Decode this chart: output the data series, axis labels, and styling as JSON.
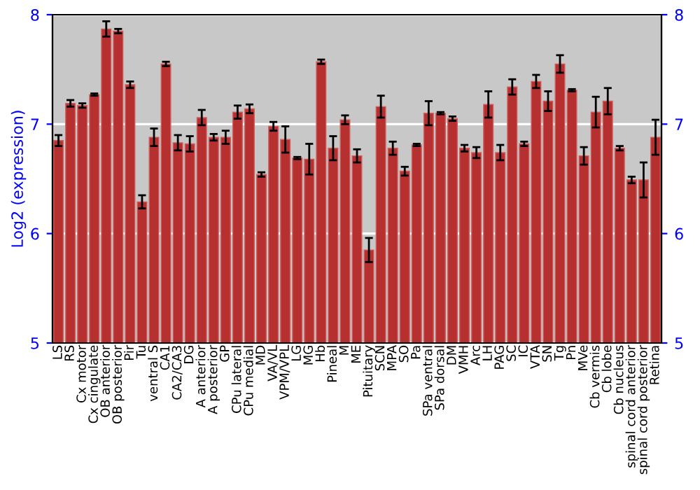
{
  "chart_data": {
    "type": "bar",
    "ylabel": "Log2 (expression)",
    "categories": [
      "LS",
      "RS",
      "Cx motor",
      "Cx cingulate",
      "OB anterior",
      "OB posterior",
      "Pir",
      "Tu",
      "ventral S",
      "CA1",
      "CA2/CA3",
      "DG",
      "A anterior",
      "A posterior",
      "GP",
      "CPu lateral",
      "CPu medial",
      "MD",
      "VA/VL",
      "VPM/VPL",
      "LG",
      "MG",
      "Hb",
      "Pineal",
      "M",
      "ME",
      "Pituitary",
      "SCN",
      "MPA",
      "SO",
      "Pa",
      "SPa ventral",
      "SPa dorsal",
      "DM",
      "VMH",
      "Arc",
      "LH",
      "PAG",
      "SC",
      "IC",
      "VTA",
      "SN",
      "Tg",
      "Pn",
      "MVe",
      "Cb vermis",
      "Cb lobe",
      "Cb nucleus",
      "spinal cord anterior",
      "spinal cord posterior",
      "Retina"
    ],
    "values": [
      6.85,
      7.19,
      7.17,
      7.27,
      7.87,
      7.85,
      7.36,
      6.29,
      6.88,
      7.55,
      6.83,
      6.82,
      7.06,
      6.88,
      6.88,
      7.11,
      7.14,
      6.54,
      6.98,
      6.86,
      6.69,
      6.68,
      7.57,
      6.78,
      7.04,
      6.71,
      5.85,
      7.16,
      6.78,
      6.57,
      6.81,
      7.1,
      7.1,
      7.05,
      6.78,
      6.74,
      7.18,
      6.74,
      7.34,
      6.82,
      7.39,
      7.21,
      7.55,
      7.31,
      6.71,
      7.11,
      7.21,
      6.78,
      6.49,
      6.49,
      6.88
    ],
    "errors": [
      0.05,
      0.03,
      0.02,
      0.01,
      0.07,
      0.02,
      0.03,
      0.06,
      0.08,
      0.02,
      0.07,
      0.07,
      0.07,
      0.03,
      0.06,
      0.06,
      0.04,
      0.02,
      0.04,
      0.12,
      0.01,
      0.14,
      0.02,
      0.11,
      0.04,
      0.06,
      0.11,
      0.1,
      0.06,
      0.04,
      0.01,
      0.11,
      0.01,
      0.02,
      0.03,
      0.05,
      0.12,
      0.07,
      0.07,
      0.02,
      0.06,
      0.09,
      0.08,
      0.01,
      0.08,
      0.14,
      0.12,
      0.02,
      0.03,
      0.16,
      0.16
    ],
    "color": "#b5302f",
    "ylim": [
      5,
      8
    ],
    "yticks": [
      5,
      6,
      7,
      8
    ],
    "y2lim": [
      5,
      8
    ],
    "y2ticks": [
      5,
      6,
      7,
      8
    ],
    "grid": "y"
  }
}
